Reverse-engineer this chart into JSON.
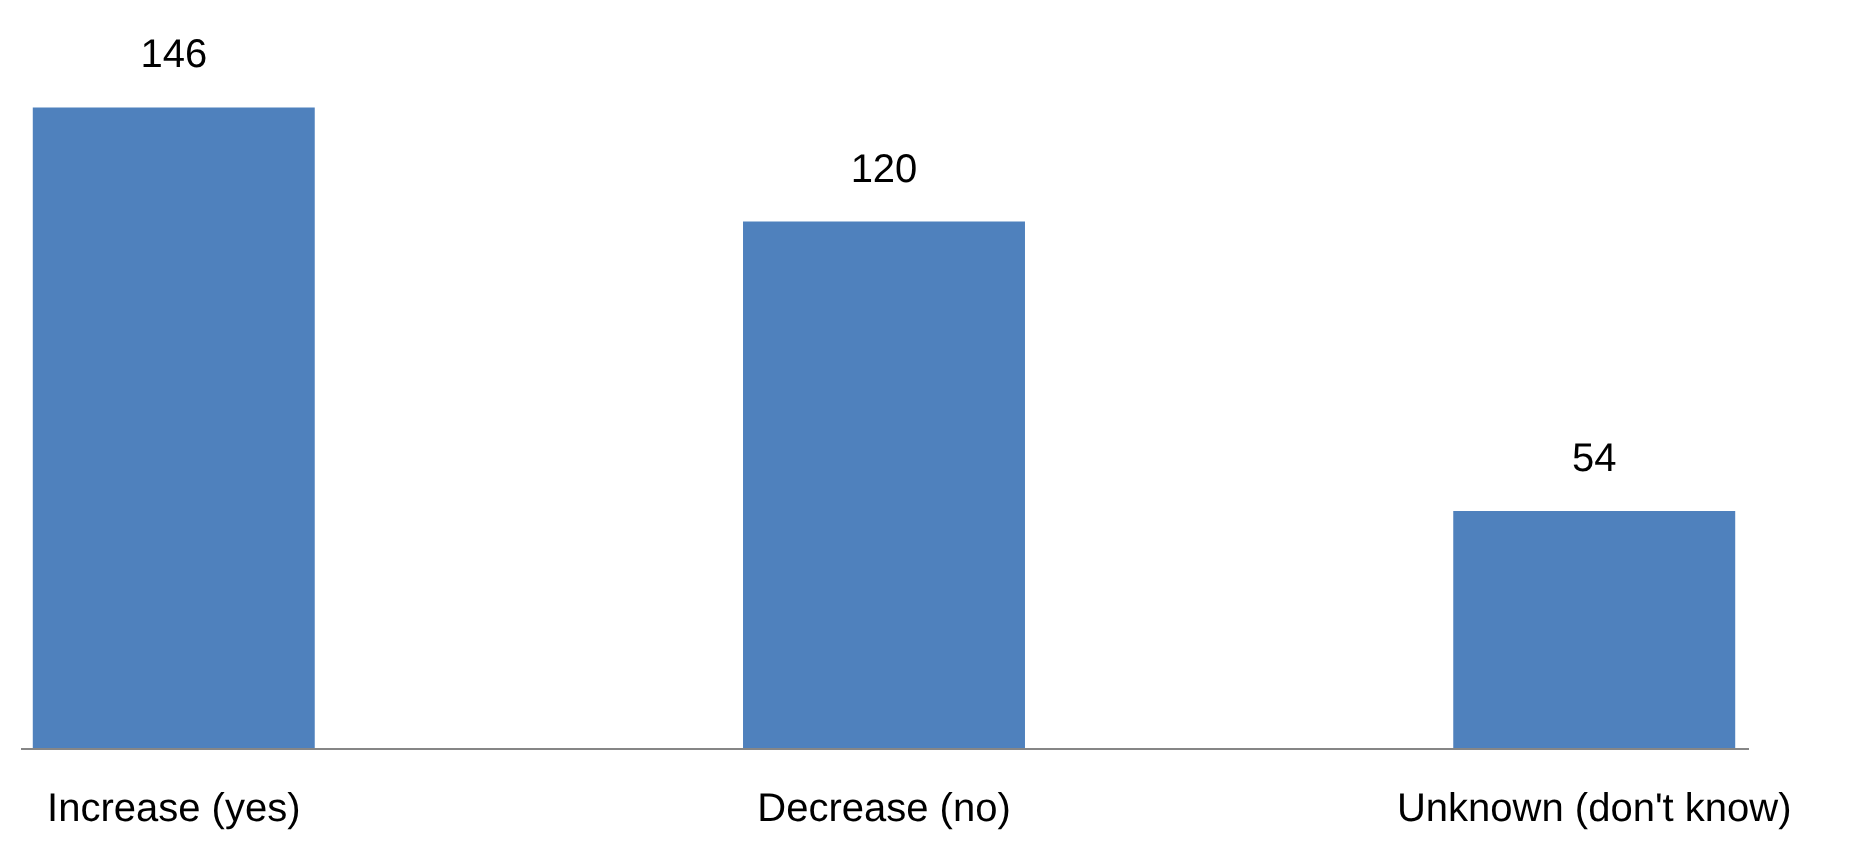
{
  "chart_data": {
    "type": "bar",
    "categories": [
      "Increase (yes)",
      "Decrease (no)",
      "Unknown (don't know)"
    ],
    "values": [
      146,
      120,
      54
    ],
    "color": "#4f81bd",
    "data_labels": true,
    "grid": false
  }
}
